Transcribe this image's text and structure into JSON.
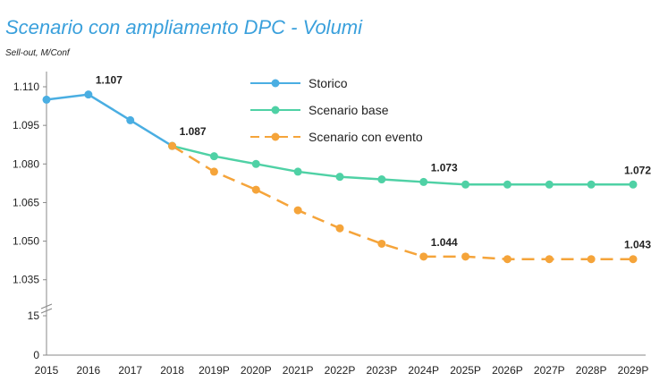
{
  "chart_data": {
    "type": "line",
    "title": "Scenario con ampliamento DPC - Volumi",
    "y_axis_label": "Sell-out, M/Conf",
    "categories": [
      "2015",
      "2016",
      "2017",
      "2018",
      "2019P",
      "2020P",
      "2021P",
      "2022P",
      "2023P",
      "2024P",
      "2025P",
      "2026P",
      "2027P",
      "2028P",
      "2029P"
    ],
    "series": [
      {
        "name": "Storico",
        "color": "#4aaee2",
        "values": [
          1.105,
          1.107,
          1.097,
          1.087,
          null,
          null,
          null,
          null,
          null,
          null,
          null,
          null,
          null,
          null,
          null
        ],
        "value_labels": [
          null,
          "1.107",
          null,
          "1.087",
          null,
          null,
          null,
          null,
          null,
          null,
          null,
          null,
          null,
          null,
          null
        ]
      },
      {
        "name": "Scenario base",
        "color": "#4fd1a5",
        "values": [
          null,
          null,
          null,
          1.087,
          1.083,
          1.08,
          1.077,
          1.075,
          1.074,
          1.073,
          1.072,
          1.072,
          1.072,
          1.072,
          1.072
        ],
        "value_labels": [
          null,
          null,
          null,
          null,
          null,
          null,
          null,
          null,
          null,
          "1.073",
          null,
          null,
          null,
          null,
          "1.072"
        ]
      },
      {
        "name": "Scenario con evento",
        "color": "#f5a43a",
        "dashed": true,
        "values": [
          null,
          null,
          null,
          1.087,
          1.077,
          1.07,
          1.062,
          1.055,
          1.049,
          1.044,
          1.044,
          1.043,
          1.043,
          1.043,
          1.043
        ],
        "value_labels": [
          null,
          null,
          null,
          null,
          null,
          null,
          null,
          null,
          null,
          "1.044",
          null,
          null,
          null,
          null,
          "1.043"
        ]
      }
    ],
    "ylim": [
      1.029,
      1.114
    ],
    "yticks": [
      {
        "value": 1.11,
        "label": "1.110"
      },
      {
        "value": 1.095,
        "label": "1.095"
      },
      {
        "value": 1.08,
        "label": "1.080"
      },
      {
        "value": 1.065,
        "label": "1.065"
      },
      {
        "value": 1.05,
        "label": "1.050"
      },
      {
        "value": 1.035,
        "label": "1.035"
      }
    ],
    "lower_ylim": [
      0,
      15
    ],
    "lower_yticks": [
      0,
      15
    ],
    "grid": false
  }
}
